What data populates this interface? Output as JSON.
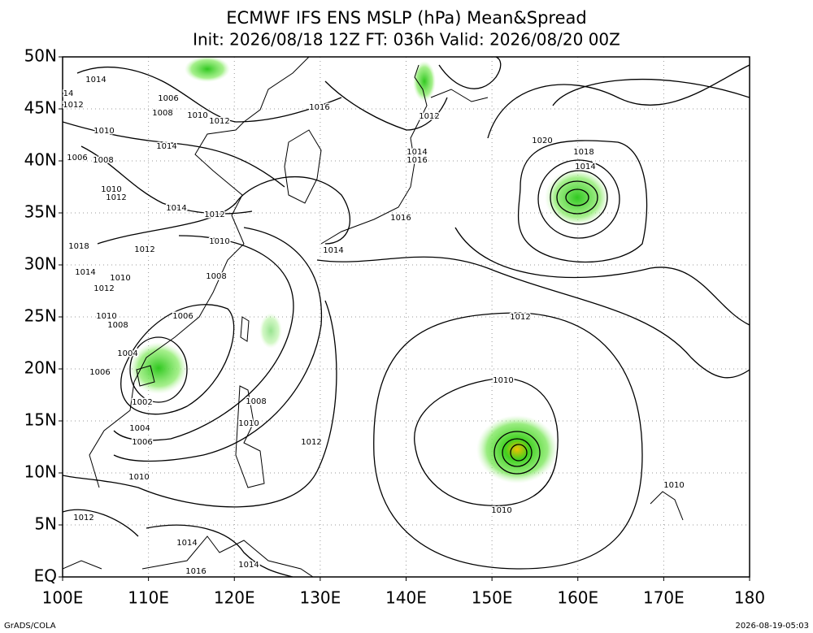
{
  "header": {
    "title": "ECMWF IFS ENS MSLP (hPa) Mean&Spread",
    "subtitle": "Init: 2026/08/18 12Z  FT: 036h  Valid: 2026/08/20 00Z"
  },
  "map": {
    "lat_labels": [
      "50N",
      "45N",
      "40N",
      "35N",
      "30N",
      "25N",
      "20N",
      "15N",
      "10N",
      "5N",
      "EQ"
    ],
    "lon_labels": [
      "100E",
      "110E",
      "120E",
      "130E",
      "140E",
      "150E",
      "160E",
      "170E",
      "180"
    ],
    "contour_labels": [
      "1014",
      "1012",
      "1006",
      "1010",
      "1012",
      "1008",
      "1010",
      "1014",
      "1006",
      "1008",
      "1010",
      "1012",
      "1014",
      "1012",
      "1016",
      "1012",
      "1014",
      "1016",
      "1016",
      "1020",
      "1018",
      "1014",
      "1010",
      "1012",
      "1014",
      "1018",
      "1014",
      "1010",
      "1008",
      "1012",
      "1010",
      "1008",
      "1006",
      "1012",
      "1004",
      "1006",
      "1002",
      "1008",
      "1010",
      "1004",
      "1006",
      "1012",
      "1010",
      "1010",
      "1010",
      "1010",
      "1012",
      "1014",
      "1014",
      "1016",
      "14"
    ]
  },
  "footer": {
    "left": "GrADS/COLA",
    "right": "2026-08-19-05:03"
  }
}
